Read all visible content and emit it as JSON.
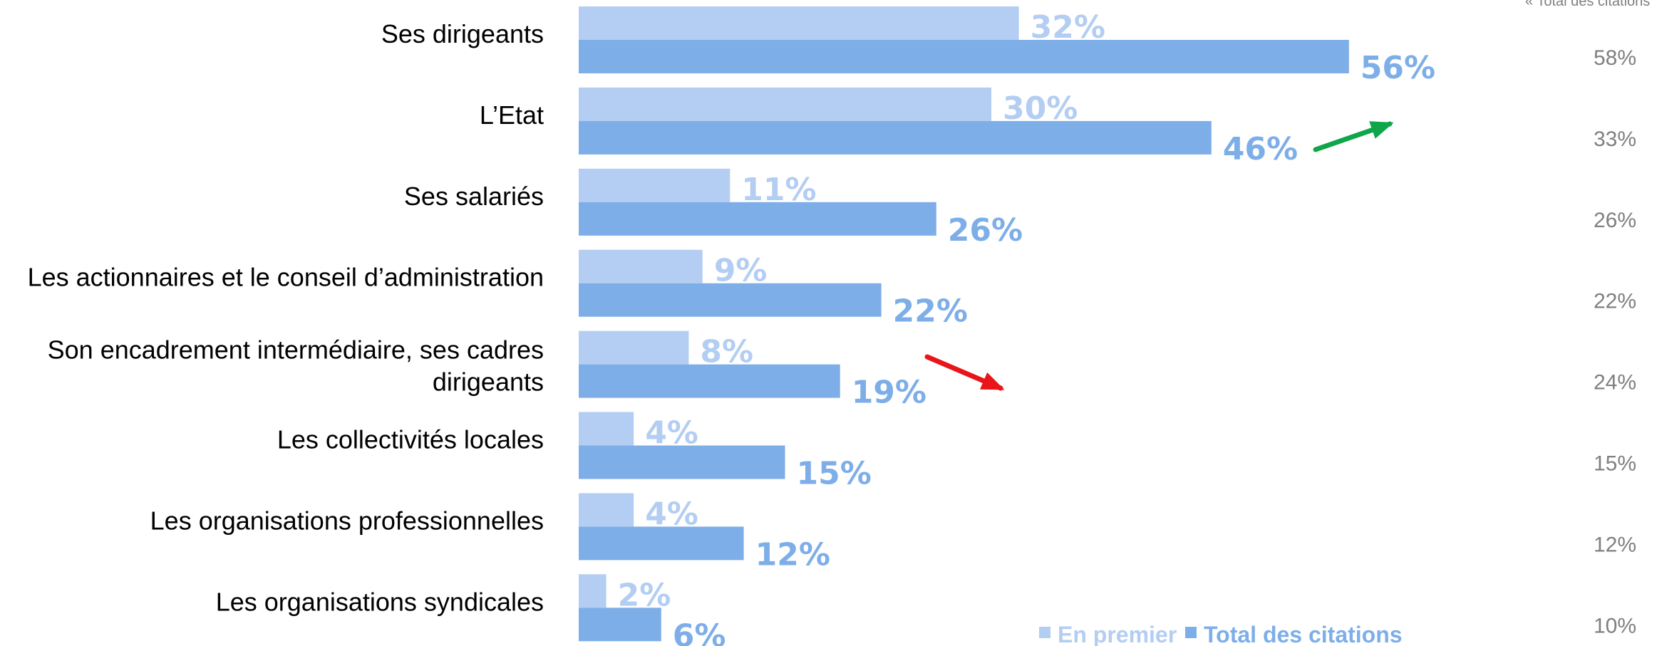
{
  "colors": {
    "first": "#b3cef2",
    "total": "#7eaee8",
    "first_label": "#b3cef2",
    "total_label": "#7eaee8",
    "arrow_up": "#0fa64a",
    "arrow_down": "#e8151b",
    "secondary_text": "#7f7f7f"
  },
  "side_note": "« Total des citations",
  "chart_data": {
    "type": "bar",
    "orientation": "horizontal",
    "categories": [
      "Ses dirigeants",
      "L’Etat",
      "Ses salariés",
      "Les actionnaires et le conseil d’administration",
      "Son encadrement intermédiaire, ses cadres dirigeants",
      "Les collectivités locales",
      "Les organisations professionnelles",
      "Les organisations syndicales"
    ],
    "series": [
      {
        "name": "En premier",
        "values": [
          32,
          30,
          11,
          9,
          8,
          4,
          4,
          2
        ],
        "labels": [
          "32%",
          "30%",
          "11%",
          "9%",
          "8%",
          "4%",
          "4%",
          "2%"
        ]
      },
      {
        "name": "Total des citations",
        "values": [
          56,
          46,
          26,
          22,
          19,
          15,
          12,
          6
        ],
        "labels": [
          "56%",
          "46%",
          "26%",
          "22%",
          "19%",
          "15%",
          "12%",
          "6%"
        ]
      }
    ],
    "previous_total": {
      "values": [
        58,
        33,
        26,
        22,
        24,
        15,
        12,
        10
      ],
      "labels": [
        "58%",
        "33%",
        "26%",
        "22%",
        "24%",
        "15%",
        "12%",
        "10%"
      ]
    },
    "trend_arrows": [
      {
        "category_index": 1,
        "direction": "up",
        "color": "#0fa64a"
      },
      {
        "category_index": 4,
        "direction": "down",
        "color": "#e8151b"
      }
    ],
    "xlim": [
      0,
      100
    ],
    "legend_placement": "bottom",
    "grid": false
  }
}
